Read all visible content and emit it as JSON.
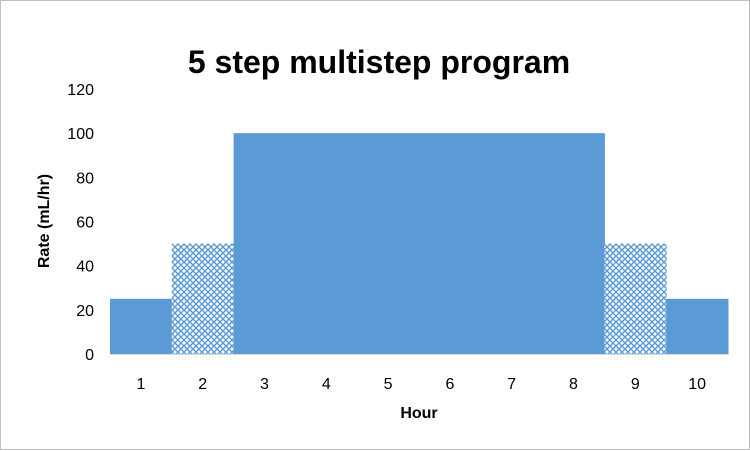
{
  "chart_data": {
    "type": "bar",
    "title": "5 step multistep program",
    "xlabel": "Hour",
    "ylabel": "Rate (mL/hr)",
    "categories": [
      "1",
      "2",
      "3",
      "4",
      "5",
      "6",
      "7",
      "8",
      "9",
      "10"
    ],
    "values": [
      25,
      50,
      100,
      100,
      100,
      100,
      100,
      100,
      50,
      25
    ],
    "patterned": [
      false,
      true,
      false,
      false,
      false,
      false,
      false,
      false,
      true,
      false
    ],
    "ylim": [
      0,
      120
    ],
    "yticks": [
      0,
      20,
      40,
      60,
      80,
      100,
      120
    ],
    "bar_gap": 0,
    "grid": false,
    "legend": "none",
    "colors": {
      "bar": "#5b9bd5",
      "pattern_bg": "#ffffff"
    }
  }
}
